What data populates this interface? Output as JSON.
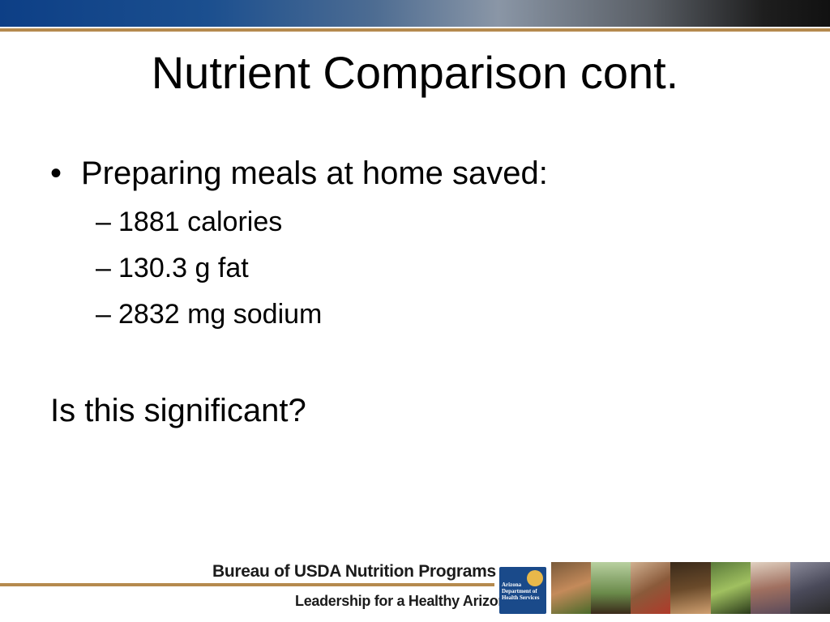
{
  "slide": {
    "title": "Nutrient Comparison cont.",
    "bullet": {
      "marker": "•",
      "text": "Preparing meals at home saved:",
      "sub_marker": "–",
      "sub_items": [
        "1881 calories",
        "130.3 g fat",
        "2832 mg sodium"
      ]
    },
    "question": "Is this significant?"
  },
  "footer": {
    "org_line": "Bureau of USDA Nutrition Programs",
    "tagline": "Leadership for a Healthy Arizona",
    "logo_text": "Arizona Department of Health Services"
  },
  "colors": {
    "header_blue": "#0d3f86",
    "rule_gold": "#b58a4e",
    "logo_blue": "#1a4a8a"
  }
}
